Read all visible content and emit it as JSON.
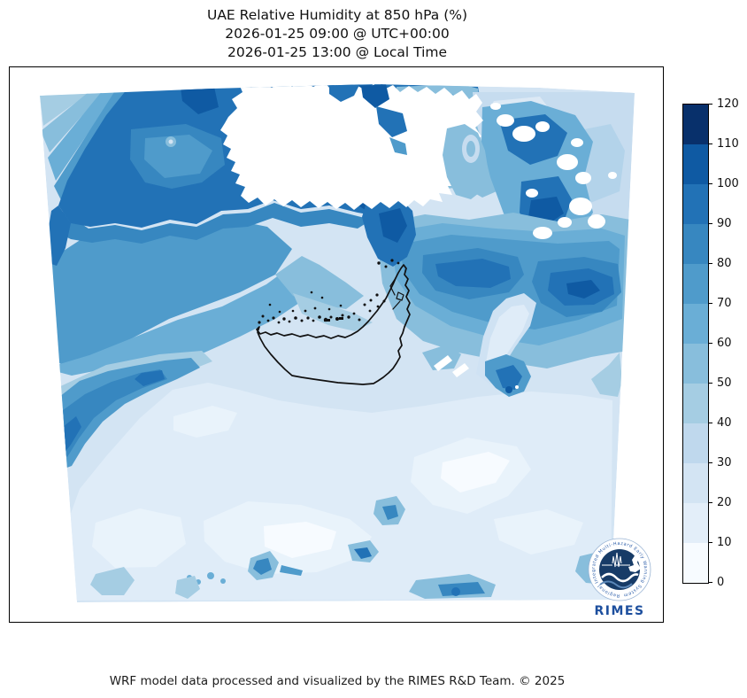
{
  "title": {
    "line1": "UAE Relative Humidity at 850 hPa (%)",
    "line2": "2026-01-25 09:00 @ UTC+00:00",
    "line3": "2026-01-25 13:00 @ Local Time"
  },
  "footer": {
    "credit": "WRF model data processed and visualized by the RIMES R&D Team. © 2025"
  },
  "logo": {
    "name": "RIMES",
    "ring_text": "Regional Integrated Multi-Hazard Early Warning System"
  },
  "chart_data": {
    "type": "heatmap",
    "subtype": "filled-contour-map",
    "title": "UAE Relative Humidity at 850 hPa (%)",
    "valid_time_utc": "2026-01-25 09:00 @ UTC+00:00",
    "valid_time_local": "2026-01-25 13:00 @ Local Time",
    "variable": "Relative Humidity",
    "pressure_level": "850 hPa",
    "units": "%",
    "colormap": "Blues",
    "legend_position": "right vertical colorbar",
    "grid": false,
    "axis_tick_labels": "none visible (borderless geographic axes)",
    "colorbar": {
      "min": 0,
      "max": 120,
      "step": 10,
      "ticks": [
        0,
        10,
        20,
        30,
        40,
        50,
        60,
        70,
        80,
        90,
        100,
        110,
        120
      ],
      "segment_colors_bottom_to_top": [
        "#f7fbff",
        "#e3eef9",
        "#d3e4f3",
        "#bfd8ed",
        "#a5cde3",
        "#88bedc",
        "#6aaed6",
        "#4f9bcb",
        "#3787c0",
        "#2272b6",
        "#0f5aa3",
        "#08306b"
      ]
    },
    "estimated_region_values_percent": [
      {
        "area": "northwest quadrant (upper Persian Gulf)",
        "rh": "60-110"
      },
      {
        "area": "top-left corner wedge",
        "rh": "40-60"
      },
      {
        "area": "north-center Iranian coast around masked terrain",
        "rh": "90-120"
      },
      {
        "area": "masked white area north-center and spots northeast",
        "rh": "no data (terrain above 850 hPa)"
      },
      {
        "area": "northeast corner",
        "rh": "20-40"
      },
      {
        "area": "east-center band (Gulf of Oman)",
        "rh": "60-100"
      },
      {
        "area": "Musandam peninsula vicinity",
        "rh": "90-110"
      },
      {
        "area": "UAE coast and interior",
        "rh": "10-40"
      },
      {
        "area": "southwest diagonal band",
        "rh": "50-90"
      },
      {
        "area": "southern desert interior",
        "rh": "0-30"
      },
      {
        "area": "scattered convective spots across the south",
        "rh": "40-100"
      }
    ]
  }
}
